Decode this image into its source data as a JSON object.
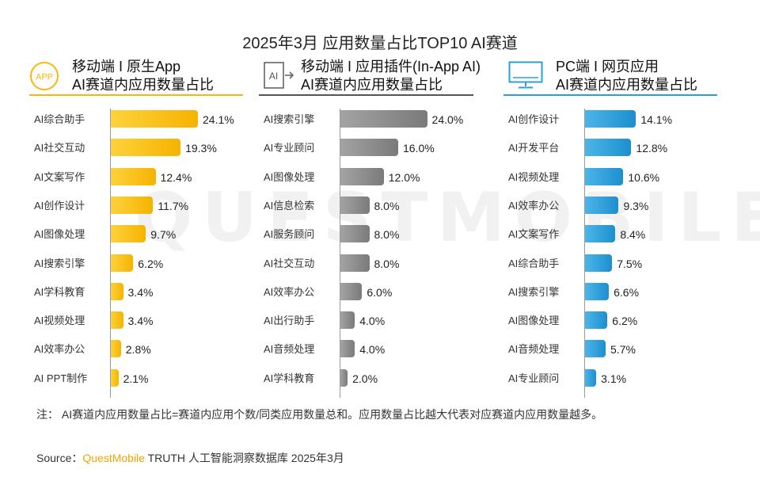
{
  "title": "2025年3月 应用数量占比TOP10 AI赛道",
  "watermark": "QUESTMOBILE",
  "colors": {
    "panel1": "#f6b80c",
    "panel2": "#8c8c8c",
    "panel3": "#2a9fd8"
  },
  "panels": [
    {
      "icon": "app-circle-icon",
      "icon_text": "APP",
      "title_line1": "移动端 I 原生App",
      "title_line2": "AI赛道内应用数量占比",
      "labels": [
        "AI综合助手",
        "AI社交互动",
        "AI文案写作",
        "AI创作设计",
        "AI图像处理",
        "AI搜索引擎",
        "AI学科教育",
        "AI视频处理",
        "AI效率办公",
        "AI PPT制作"
      ],
      "value_labels": [
        "24.1%",
        "19.3%",
        "12.4%",
        "11.7%",
        "9.7%",
        "6.2%",
        "3.4%",
        "3.4%",
        "2.8%",
        "2.1%"
      ]
    },
    {
      "icon": "ai-plugin-icon",
      "icon_text": "AI",
      "title_line1": "移动端 I 应用插件(In-App AI)",
      "title_line2": "AI赛道内应用数量占比",
      "labels": [
        "AI搜索引擎",
        "AI专业顾问",
        "AI图像处理",
        "AI信息检索",
        "AI服务顾问",
        "AI社交互动",
        "AI效率办公",
        "AI出行助手",
        "AI音频处理",
        "AI学科教育"
      ],
      "value_labels": [
        "24.0%",
        "16.0%",
        "12.0%",
        "8.0%",
        "8.0%",
        "8.0%",
        "6.0%",
        "4.0%",
        "4.0%",
        "2.0%"
      ]
    },
    {
      "icon": "monitor-icon",
      "icon_text": "",
      "title_line1": "PC端 I 网页应用",
      "title_line2": "AI赛道内应用数量占比",
      "labels": [
        "AI创作设计",
        "AI开发平台",
        "AI视频处理",
        "AI效率办公",
        "AI文案写作",
        "AI综合助手",
        "AI搜索引擎",
        "AI图像处理",
        "AI音频处理",
        "AI专业顾问"
      ],
      "value_labels": [
        "14.1%",
        "12.8%",
        "10.6%",
        "9.3%",
        "8.4%",
        "7.5%",
        "6.6%",
        "6.2%",
        "5.7%",
        "3.1%"
      ]
    }
  ],
  "chart_data": [
    {
      "type": "bar",
      "orientation": "horizontal",
      "title": "移动端 I 原生App AI赛道内应用数量占比",
      "categories": [
        "AI综合助手",
        "AI社交互动",
        "AI文案写作",
        "AI创作设计",
        "AI图像处理",
        "AI搜索引擎",
        "AI学科教育",
        "AI视频处理",
        "AI效率办公",
        "AI PPT制作"
      ],
      "values": [
        24.1,
        19.3,
        12.4,
        11.7,
        9.7,
        6.2,
        3.4,
        3.4,
        2.8,
        2.1
      ],
      "unit": "%",
      "grid": false
    },
    {
      "type": "bar",
      "orientation": "horizontal",
      "title": "移动端 I 应用插件(In-App AI) AI赛道内应用数量占比",
      "categories": [
        "AI搜索引擎",
        "AI专业顾问",
        "AI图像处理",
        "AI信息检索",
        "AI服务顾问",
        "AI社交互动",
        "AI效率办公",
        "AI出行助手",
        "AI音频处理",
        "AI学科教育"
      ],
      "values": [
        24.0,
        16.0,
        12.0,
        8.0,
        8.0,
        8.0,
        6.0,
        4.0,
        4.0,
        2.0
      ],
      "unit": "%",
      "grid": false
    },
    {
      "type": "bar",
      "orientation": "horizontal",
      "title": "PC端 I 网页应用 AI赛道内应用数量占比",
      "categories": [
        "AI创作设计",
        "AI开发平台",
        "AI视频处理",
        "AI效率办公",
        "AI文案写作",
        "AI综合助手",
        "AI搜索引擎",
        "AI图像处理",
        "AI音频处理",
        "AI专业顾问"
      ],
      "values": [
        14.1,
        12.8,
        10.6,
        9.3,
        8.4,
        7.5,
        6.6,
        6.2,
        5.7,
        3.1
      ],
      "unit": "%",
      "grid": false
    }
  ],
  "note": "注：   AI赛道内应用数量占比=赛道内应用个数/同类应用数量总和。应用数量占比越大代表对应赛道内应用数量越多。",
  "source": {
    "prefix": "Source：",
    "brand": "QuestMobile",
    "suffix": " TRUTH 人工智能洞察数据库 2025年3月"
  }
}
